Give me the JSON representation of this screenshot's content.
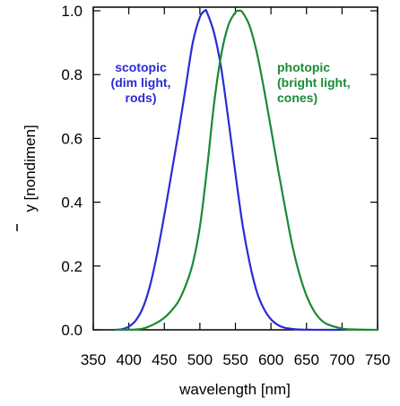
{
  "chart_data": {
    "type": "line",
    "xlabel": "wavelength [nm]",
    "ylabel": "y [nondimen]",
    "xlim": [
      350,
      750
    ],
    "ylim": [
      0,
      1.02
    ],
    "grid": false,
    "x_ticks": [
      "350",
      "400",
      "450",
      "500",
      "550",
      "600",
      "650",
      "700",
      "750"
    ],
    "y_ticks": [
      "0.0",
      "0.2",
      "0.4",
      "0.6",
      "0.8",
      "1.0"
    ],
    "series": [
      {
        "name": "scotopic",
        "color": "#2b2bd6",
        "x": [
          380,
          390,
          400,
          410,
          420,
          430,
          440,
          450,
          460,
          470,
          480,
          490,
          500,
          507,
          510,
          520,
          530,
          540,
          550,
          560,
          570,
          580,
          590,
          600,
          610,
          620,
          630,
          640,
          650,
          660,
          680,
          700
        ],
        "y": [
          0.0,
          0.002,
          0.01,
          0.03,
          0.07,
          0.14,
          0.24,
          0.36,
          0.49,
          0.62,
          0.76,
          0.9,
          0.98,
          1.0,
          0.995,
          0.93,
          0.82,
          0.66,
          0.49,
          0.33,
          0.21,
          0.12,
          0.066,
          0.033,
          0.015,
          0.006,
          0.003,
          0.001,
          0.0005,
          0.0002,
          0.0,
          0.0
        ]
      },
      {
        "name": "photopic",
        "color": "#1a8a34",
        "x": [
          380,
          400,
          410,
          420,
          430,
          440,
          450,
          460,
          470,
          480,
          490,
          500,
          510,
          520,
          530,
          540,
          550,
          555,
          560,
          570,
          580,
          590,
          600,
          610,
          620,
          630,
          640,
          650,
          660,
          670,
          680,
          700,
          720,
          750
        ],
        "y": [
          0.0,
          0.0004,
          0.0012,
          0.004,
          0.012,
          0.023,
          0.038,
          0.06,
          0.09,
          0.139,
          0.208,
          0.323,
          0.503,
          0.71,
          0.862,
          0.954,
          0.995,
          1.0,
          0.995,
          0.952,
          0.87,
          0.757,
          0.631,
          0.503,
          0.381,
          0.265,
          0.175,
          0.107,
          0.061,
          0.032,
          0.017,
          0.0041,
          0.001,
          0.0
        ]
      }
    ],
    "annotations": [
      {
        "id": "scotopic",
        "color": "#2b2bd6",
        "lines": [
          "scotopic",
          "(dim light,",
          "rods)"
        ]
      },
      {
        "id": "photopic",
        "color": "#1a8a34",
        "lines": [
          "photopic",
          "(bright light,",
          "cones)"
        ]
      }
    ]
  }
}
